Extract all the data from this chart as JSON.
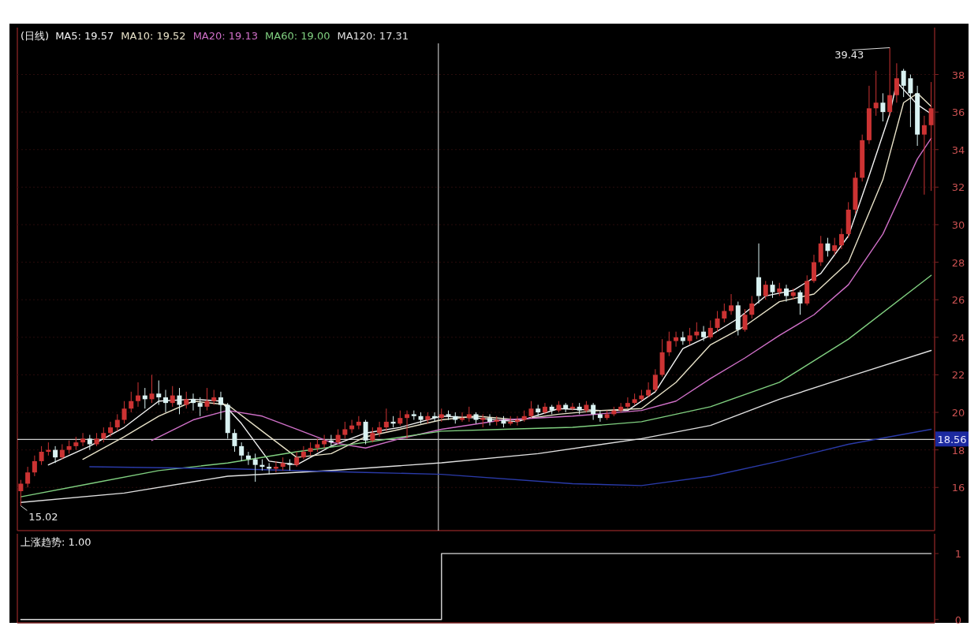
{
  "chart_data": [
    {
      "type": "candlestick",
      "title": "(日线)",
      "categories": [
        null,
        null,
        null,
        null,
        null,
        null,
        null,
        null,
        null,
        null,
        null,
        null,
        null,
        null,
        null,
        null,
        null,
        null,
        null,
        null,
        null,
        null,
        null,
        null,
        null,
        null,
        null,
        null,
        null,
        null,
        null,
        null,
        null,
        null,
        null,
        null,
        null,
        null,
        null,
        null,
        null,
        null,
        null,
        null,
        null,
        null,
        null,
        null,
        null,
        null,
        null,
        null,
        null,
        null,
        null,
        null,
        null,
        null,
        null,
        null,
        null,
        null,
        null,
        null,
        null,
        null,
        null,
        null,
        null,
        null,
        null,
        null,
        null,
        null,
        null,
        null,
        null,
        null,
        null,
        null,
        null,
        null,
        null,
        null,
        null,
        null,
        null,
        null,
        null,
        null,
        null,
        null,
        null,
        null,
        null,
        null,
        null,
        null,
        null,
        null,
        null,
        null,
        null,
        null,
        null,
        null,
        null,
        null,
        null,
        null,
        null,
        null,
        null,
        null,
        null,
        null,
        null,
        null,
        null,
        null,
        null,
        null,
        null,
        null,
        null,
        null,
        null,
        null,
        null,
        null,
        null,
        null,
        null
      ],
      "ohlc": [
        [
          15.8,
          16.4,
          15.02,
          16.2
        ],
        [
          16.2,
          17.1,
          16.0,
          16.8
        ],
        [
          16.8,
          17.7,
          16.6,
          17.4
        ],
        [
          17.4,
          18.2,
          17.2,
          17.9
        ],
        [
          17.9,
          18.4,
          17.7,
          18.0
        ],
        [
          18.0,
          18.2,
          17.3,
          17.6
        ],
        [
          17.6,
          18.3,
          17.5,
          18.0
        ],
        [
          18.0,
          18.5,
          17.8,
          18.2
        ],
        [
          18.2,
          18.7,
          18.0,
          18.4
        ],
        [
          18.4,
          18.9,
          18.2,
          18.6
        ],
        [
          18.6,
          18.8,
          18.0,
          18.3
        ],
        [
          18.3,
          18.9,
          18.2,
          18.6
        ],
        [
          18.6,
          19.2,
          18.4,
          18.9
        ],
        [
          18.9,
          19.5,
          18.7,
          19.2
        ],
        [
          19.2,
          19.9,
          19.0,
          19.6
        ],
        [
          19.6,
          20.6,
          19.4,
          20.2
        ],
        [
          20.2,
          21.1,
          20.0,
          20.6
        ],
        [
          20.6,
          21.6,
          20.3,
          20.9
        ],
        [
          20.9,
          21.3,
          20.2,
          20.7
        ],
        [
          20.7,
          22.0,
          20.5,
          21.0
        ],
        [
          21.0,
          21.7,
          20.4,
          20.8
        ],
        [
          20.8,
          21.2,
          20.0,
          20.5
        ],
        [
          20.5,
          21.4,
          20.3,
          20.9
        ],
        [
          20.9,
          21.3,
          19.9,
          20.4
        ],
        [
          20.4,
          21.1,
          20.2,
          20.7
        ],
        [
          20.7,
          21.0,
          20.1,
          20.5
        ],
        [
          20.5,
          20.8,
          19.8,
          20.3
        ],
        [
          20.3,
          21.3,
          20.1,
          20.6
        ],
        [
          20.6,
          21.2,
          20.4,
          20.8
        ],
        [
          20.8,
          21.1,
          19.6,
          20.4
        ],
        [
          20.4,
          20.5,
          18.6,
          18.9
        ],
        [
          18.9,
          19.1,
          17.9,
          18.2
        ],
        [
          18.2,
          18.4,
          17.4,
          17.7
        ],
        [
          17.7,
          17.9,
          17.2,
          17.5
        ],
        [
          17.5,
          17.8,
          16.3,
          17.2
        ],
        [
          17.2,
          17.5,
          16.9,
          17.1
        ],
        [
          17.1,
          17.3,
          16.7,
          17.0
        ],
        [
          17.0,
          17.4,
          16.8,
          17.1
        ],
        [
          17.1,
          17.6,
          16.9,
          17.3
        ],
        [
          17.3,
          17.5,
          16.9,
          17.2
        ],
        [
          17.2,
          17.9,
          17.1,
          17.6
        ],
        [
          17.6,
          18.2,
          17.5,
          17.9
        ],
        [
          17.9,
          18.4,
          17.7,
          18.1
        ],
        [
          18.1,
          18.6,
          17.9,
          18.3
        ],
        [
          18.3,
          18.8,
          18.1,
          18.5
        ],
        [
          18.5,
          18.8,
          18.2,
          18.4
        ],
        [
          18.4,
          19.1,
          18.3,
          18.8
        ],
        [
          18.8,
          19.5,
          18.6,
          19.1
        ],
        [
          19.1,
          19.6,
          18.9,
          19.3
        ],
        [
          19.3,
          19.8,
          19.1,
          19.5
        ],
        [
          19.5,
          19.6,
          18.3,
          18.5
        ],
        [
          18.5,
          19.2,
          18.4,
          18.9
        ],
        [
          18.9,
          19.5,
          18.7,
          19.2
        ],
        [
          19.2,
          20.2,
          19.0,
          19.5
        ],
        [
          19.5,
          19.8,
          19.2,
          19.4
        ],
        [
          19.4,
          20.1,
          19.3,
          19.7
        ],
        [
          19.7,
          20.1,
          18.6,
          19.9
        ],
        [
          19.9,
          20.1,
          19.6,
          19.8
        ],
        [
          19.8,
          20.0,
          19.4,
          19.6
        ],
        [
          19.6,
          20.0,
          19.4,
          19.8
        ],
        [
          19.8,
          20.0,
          19.5,
          19.7
        ],
        [
          19.7,
          20.2,
          19.5,
          19.9
        ],
        [
          19.9,
          20.1,
          19.6,
          19.8
        ],
        [
          19.8,
          20.0,
          19.4,
          19.6
        ],
        [
          19.6,
          20.0,
          19.5,
          19.7
        ],
        [
          19.7,
          20.3,
          19.5,
          19.9
        ],
        [
          19.9,
          20.0,
          19.4,
          19.6
        ],
        [
          19.6,
          19.9,
          19.2,
          19.7
        ],
        [
          19.7,
          19.9,
          19.3,
          19.5
        ],
        [
          19.5,
          19.8,
          19.3,
          19.6
        ],
        [
          19.6,
          19.8,
          19.2,
          19.4
        ],
        [
          19.4,
          19.8,
          19.3,
          19.5
        ],
        [
          19.5,
          19.8,
          19.3,
          19.6
        ],
        [
          19.6,
          20.1,
          19.5,
          19.8
        ],
        [
          19.8,
          20.6,
          19.7,
          20.2
        ],
        [
          20.2,
          20.4,
          19.8,
          20.0
        ],
        [
          20.0,
          20.5,
          19.9,
          20.3
        ],
        [
          20.3,
          20.4,
          19.9,
          20.1
        ],
        [
          20.1,
          20.6,
          20.0,
          20.4
        ],
        [
          20.4,
          20.5,
          20.0,
          20.2
        ],
        [
          20.2,
          20.5,
          20.1,
          20.3
        ],
        [
          20.3,
          20.5,
          19.9,
          20.1
        ],
        [
          20.1,
          20.6,
          20.0,
          20.4
        ],
        [
          20.4,
          20.5,
          19.6,
          19.9
        ],
        [
          19.9,
          20.1,
          19.5,
          19.7
        ],
        [
          19.7,
          20.1,
          19.6,
          19.9
        ],
        [
          19.9,
          20.3,
          19.8,
          20.1
        ],
        [
          20.1,
          20.5,
          20.0,
          20.3
        ],
        [
          20.3,
          20.8,
          20.2,
          20.5
        ],
        [
          20.5,
          21.0,
          20.4,
          20.7
        ],
        [
          20.7,
          21.2,
          20.6,
          20.9
        ],
        [
          20.9,
          21.6,
          20.8,
          21.2
        ],
        [
          21.2,
          22.3,
          21.1,
          22.0
        ],
        [
          22.0,
          23.9,
          21.9,
          23.2
        ],
        [
          23.2,
          24.3,
          23.0,
          23.8
        ],
        [
          23.8,
          24.3,
          23.5,
          24.0
        ],
        [
          24.0,
          24.3,
          23.6,
          23.8
        ],
        [
          23.8,
          24.5,
          23.6,
          24.1
        ],
        [
          24.1,
          24.8,
          23.9,
          24.3
        ],
        [
          24.3,
          24.6,
          23.8,
          24.0
        ],
        [
          24.0,
          24.9,
          23.9,
          24.5
        ],
        [
          24.5,
          25.4,
          24.3,
          25.0
        ],
        [
          25.0,
          25.8,
          24.8,
          25.4
        ],
        [
          25.4,
          26.3,
          25.2,
          25.7
        ],
        [
          25.7,
          25.9,
          24.1,
          24.4
        ],
        [
          24.4,
          25.5,
          24.3,
          25.2
        ],
        [
          25.2,
          26.2,
          25.0,
          25.8
        ],
        [
          27.2,
          29.0,
          25.8,
          26.2
        ],
        [
          26.2,
          27.0,
          26.0,
          26.8
        ],
        [
          26.8,
          27.0,
          26.1,
          26.4
        ],
        [
          26.4,
          26.9,
          26.2,
          26.6
        ],
        [
          26.6,
          26.8,
          25.9,
          26.2
        ],
        [
          26.2,
          26.6,
          26.0,
          26.4
        ],
        [
          26.4,
          26.5,
          25.2,
          25.8
        ],
        [
          25.8,
          27.3,
          25.7,
          27.0
        ],
        [
          27.0,
          28.4,
          26.9,
          28.0
        ],
        [
          28.0,
          29.4,
          27.8,
          29.0
        ],
        [
          29.0,
          29.3,
          28.3,
          28.6
        ],
        [
          28.6,
          29.3,
          28.4,
          28.9
        ],
        [
          28.9,
          29.8,
          28.7,
          29.5
        ],
        [
          29.5,
          31.2,
          29.3,
          30.8
        ],
        [
          30.8,
          32.8,
          30.6,
          32.5
        ],
        [
          32.5,
          34.8,
          32.3,
          34.5
        ],
        [
          34.5,
          37.4,
          34.3,
          36.2
        ],
        [
          36.2,
          38.2,
          35.8,
          36.5
        ],
        [
          36.5,
          37.0,
          35.5,
          36.0
        ],
        [
          36.0,
          39.43,
          35.8,
          36.9
        ],
        [
          36.9,
          38.6,
          36.5,
          37.8
        ],
        [
          38.2,
          38.3,
          36.8,
          37.4
        ],
        [
          37.8,
          38.0,
          35.2,
          37.0
        ],
        [
          37.0,
          37.4,
          34.2,
          34.8
        ],
        [
          34.8,
          35.8,
          31.6,
          35.3
        ],
        [
          35.3,
          37.6,
          31.8,
          36.2
        ]
      ],
      "colors": [
        "#cc3333",
        "#cc3333",
        "#cc3333",
        "#cc3333",
        "#cc3333",
        "#d9f2f2",
        "#cc3333",
        "#cc3333",
        "#cc3333",
        "#cc3333",
        "#d9f2f2",
        "#cc3333",
        "#cc3333",
        "#cc3333",
        "#cc3333",
        "#cc3333",
        "#cc3333",
        "#cc3333",
        "#d9f2f2",
        "#cc3333",
        "#d9f2f2",
        "#d9f2f2",
        "#cc3333",
        "#d9f2f2",
        "#cc3333",
        "#d9f2f2",
        "#d9f2f2",
        "#cc3333",
        "#cc3333",
        "#d9f2f2",
        "#d9f2f2",
        "#d9f2f2",
        "#d9f2f2",
        "#d9f2f2",
        "#d9f2f2",
        "#d9f2f2",
        "#d9f2f2",
        "#cc3333",
        "#cc3333",
        "#d9f2f2",
        "#cc3333",
        "#cc3333",
        "#cc3333",
        "#cc3333",
        "#cc3333",
        "#d9f2f2",
        "#cc3333",
        "#cc3333",
        "#cc3333",
        "#cc3333",
        "#d9f2f2",
        "#cc3333",
        "#cc3333",
        "#cc3333",
        "#d9f2f2",
        "#cc3333",
        "#cc3333",
        "#d9f2f2",
        "#d9f2f2",
        "#cc3333",
        "#d9f2f2",
        "#cc3333",
        "#d9f2f2",
        "#d9f2f2",
        "#cc3333",
        "#cc3333",
        "#d9f2f2",
        "#cc3333",
        "#d9f2f2",
        "#cc3333",
        "#d9f2f2",
        "#cc3333",
        "#cc3333",
        "#cc3333",
        "#cc3333",
        "#d9f2f2",
        "#cc3333",
        "#d9f2f2",
        "#cc3333",
        "#d9f2f2",
        "#cc3333",
        "#d9f2f2",
        "#cc3333",
        "#d9f2f2",
        "#d9f2f2",
        "#cc3333",
        "#cc3333",
        "#cc3333",
        "#cc3333",
        "#cc3333",
        "#cc3333",
        "#cc3333",
        "#cc3333",
        "#cc3333",
        "#cc3333",
        "#cc3333",
        "#d9f2f2",
        "#cc3333",
        "#cc3333",
        "#d9f2f2",
        "#cc3333",
        "#cc3333",
        "#cc3333",
        "#cc3333",
        "#d9f2f2",
        "#cc3333",
        "#cc3333",
        "#d9f2f2",
        "#cc3333",
        "#d9f2f2",
        "#cc3333",
        "#d9f2f2",
        "#cc3333",
        "#d9f2f2",
        "#cc3333",
        "#cc3333",
        "#cc3333",
        "#d9f2f2",
        "#cc3333",
        "#cc3333",
        "#cc3333",
        "#cc3333",
        "#cc3333",
        "#cc3333",
        "#cc3333",
        "#d9f2f2",
        "#cc3333",
        "#cc3333",
        "#d9f2f2",
        "#d9f2f2",
        "#d9f2f2",
        "#cc3333",
        "#cc3333"
      ],
      "series": [
        {
          "type": "line",
          "name": "MA5: 19.57",
          "color": "#f4f4f4",
          "values": [
            null,
            null,
            null,
            null,
            17.2,
            null,
            null,
            null,
            null,
            null,
            18.2,
            null,
            null,
            null,
            null,
            19.2,
            null,
            null,
            null,
            null,
            20.6,
            null,
            null,
            null,
            null,
            20.7,
            null,
            null,
            null,
            20.6,
            null,
            null,
            19.4,
            null,
            null,
            null,
            17.4,
            null,
            null,
            null,
            17.2,
            null,
            null,
            null,
            null,
            18.2,
            null,
            null,
            null,
            null,
            18.9,
            null,
            null,
            null,
            null,
            19.2,
            null,
            null,
            null,
            null,
            null,
            19.8,
            null,
            null,
            null,
            null,
            19.7,
            null,
            null,
            null,
            null,
            null,
            19.5,
            null,
            null,
            null,
            null,
            null,
            20.2,
            null,
            null,
            null,
            null,
            null,
            20.1,
            null,
            null,
            null,
            20.1,
            null,
            null,
            null,
            21.1,
            null,
            null,
            null,
            23.4,
            null,
            null,
            null,
            24.1,
            null,
            null,
            null,
            25.0,
            null,
            null,
            null,
            26.2,
            null,
            null,
            null,
            26.5,
            null,
            null,
            null,
            27.4,
            null,
            null,
            null,
            29.4,
            null,
            null,
            32.6,
            null,
            null,
            35.9,
            37.6,
            null,
            null,
            36.4,
            null,
            35.9
          ]
        },
        {
          "type": "line",
          "name": "MA10: 19.52",
          "color": "#e8e2c8",
          "values": [
            null,
            null,
            null,
            null,
            null,
            null,
            null,
            null,
            null,
            17.5,
            null,
            null,
            null,
            null,
            null,
            18.7,
            null,
            null,
            null,
            null,
            19.8,
            null,
            null,
            null,
            null,
            20.6,
            null,
            null,
            null,
            null,
            20.4,
            null,
            null,
            null,
            null,
            19.0,
            null,
            null,
            null,
            null,
            17.6,
            null,
            null,
            null,
            null,
            17.8,
            null,
            null,
            null,
            null,
            18.7,
            null,
            null,
            null,
            null,
            19.1,
            null,
            null,
            null,
            null,
            null,
            19.6,
            null,
            null,
            null,
            null,
            19.8,
            null,
            null,
            null,
            null,
            null,
            19.6,
            null,
            null,
            null,
            null,
            null,
            19.9,
            null,
            null,
            null,
            null,
            null,
            20.1,
            null,
            null,
            null,
            null,
            null,
            20.2,
            null,
            null,
            null,
            null,
            21.6,
            null,
            null,
            null,
            null,
            23.6,
            null,
            null,
            null,
            null,
            24.6,
            null,
            null,
            null,
            null,
            25.9,
            null,
            null,
            null,
            null,
            26.3,
            null,
            null,
            null,
            null,
            28.0,
            null,
            null,
            null,
            null,
            32.4,
            null,
            null,
            36.5,
            null,
            37.0,
            null,
            36.3
          ]
        },
        {
          "type": "line",
          "name": "MA20: 19.13",
          "color": "#d070c8",
          "values": [
            null,
            null,
            null,
            null,
            null,
            null,
            null,
            null,
            null,
            null,
            null,
            null,
            null,
            null,
            null,
            null,
            null,
            null,
            null,
            18.5,
            null,
            null,
            null,
            null,
            null,
            19.6,
            null,
            null,
            null,
            null,
            20.1,
            null,
            null,
            null,
            null,
            19.8,
            null,
            null,
            null,
            null,
            19.1,
            null,
            null,
            null,
            null,
            18.4,
            null,
            null,
            null,
            null,
            18.1,
            null,
            null,
            null,
            null,
            18.6,
            null,
            null,
            null,
            null,
            null,
            19.1,
            null,
            null,
            null,
            null,
            null,
            null,
            null,
            null,
            19.6,
            null,
            null,
            null,
            null,
            null,
            null,
            null,
            null,
            null,
            19.8,
            null,
            null,
            null,
            null,
            null,
            null,
            null,
            null,
            null,
            20.1,
            null,
            null,
            null,
            null,
            20.6,
            null,
            null,
            null,
            null,
            21.8,
            null,
            null,
            null,
            null,
            22.9,
            null,
            null,
            null,
            null,
            24.1,
            null,
            null,
            null,
            null,
            25.2,
            null,
            null,
            null,
            null,
            26.8,
            null,
            null,
            null,
            null,
            29.5,
            null,
            null,
            null,
            null,
            33.5,
            null,
            34.6
          ]
        },
        {
          "type": "line",
          "name": "MA60: 19.00",
          "color": "#80d080",
          "values": [
            15.5,
            null,
            null,
            null,
            null,
            null,
            null,
            null,
            null,
            null,
            16.2,
            null,
            null,
            null,
            null,
            null,
            null,
            null,
            null,
            null,
            16.9,
            null,
            null,
            null,
            null,
            null,
            null,
            null,
            null,
            null,
            17.3,
            null,
            null,
            null,
            null,
            null,
            null,
            null,
            null,
            null,
            17.9,
            null,
            null,
            null,
            null,
            null,
            null,
            null,
            null,
            null,
            18.4,
            null,
            null,
            null,
            null,
            null,
            null,
            null,
            null,
            null,
            null,
            19.0,
            null,
            null,
            null,
            null,
            null,
            null,
            null,
            null,
            19.1,
            null,
            null,
            null,
            null,
            null,
            null,
            null,
            null,
            null,
            19.2,
            null,
            null,
            null,
            null,
            null,
            null,
            null,
            null,
            null,
            19.5,
            null,
            null,
            null,
            null,
            null,
            null,
            null,
            null,
            null,
            20.3,
            null,
            null,
            null,
            null,
            null,
            null,
            null,
            null,
            null,
            21.6,
            null,
            null,
            null,
            null,
            null,
            null,
            null,
            null,
            null,
            23.9,
            null,
            null,
            null,
            null,
            null,
            null,
            null,
            null,
            null,
            null,
            null,
            27.3
          ]
        },
        {
          "type": "line",
          "name": "MA120: 17.31",
          "color": "#e0e0e0",
          "values": [
            15.2,
            null,
            null,
            null,
            null,
            null,
            null,
            null,
            null,
            null,
            null,
            null,
            null,
            null,
            null,
            15.7,
            null,
            null,
            null,
            null,
            null,
            null,
            null,
            null,
            null,
            null,
            null,
            null,
            null,
            null,
            16.6,
            null,
            null,
            null,
            null,
            null,
            null,
            null,
            null,
            null,
            null,
            null,
            null,
            null,
            null,
            16.9,
            null,
            null,
            null,
            null,
            null,
            null,
            null,
            null,
            null,
            null,
            null,
            null,
            null,
            null,
            null,
            17.31,
            null,
            null,
            null,
            null,
            null,
            null,
            null,
            null,
            null,
            null,
            null,
            null,
            null,
            17.8,
            null,
            null,
            null,
            null,
            null,
            null,
            null,
            null,
            null,
            null,
            null,
            null,
            null,
            null,
            18.6,
            null,
            null,
            null,
            null,
            null,
            null,
            null,
            null,
            null,
            19.3,
            null,
            null,
            null,
            null,
            null,
            null,
            null,
            null,
            null,
            20.7,
            null,
            null,
            null,
            null,
            null,
            null,
            null,
            null,
            null,
            21.9,
            null,
            null,
            null,
            null,
            null,
            null,
            null,
            null,
            null,
            null,
            null,
            23.3
          ]
        },
        {
          "type": "line",
          "color": "#2a3aa8",
          "values": [
            null,
            null,
            null,
            null,
            null,
            null,
            null,
            null,
            null,
            null,
            17.1,
            null,
            null,
            null,
            null,
            null,
            null,
            null,
            null,
            null,
            null,
            null,
            null,
            null,
            null,
            null,
            null,
            null,
            null,
            null,
            17.0,
            null,
            null,
            null,
            null,
            null,
            null,
            null,
            null,
            null,
            null,
            null,
            null,
            null,
            null,
            null,
            null,
            null,
            null,
            null,
            16.8,
            null,
            null,
            null,
            null,
            null,
            null,
            null,
            null,
            null,
            null,
            16.7,
            null,
            null,
            null,
            null,
            null,
            null,
            null,
            null,
            null,
            null,
            null,
            null,
            null,
            null,
            null,
            null,
            null,
            null,
            16.2,
            null,
            null,
            null,
            null,
            null,
            null,
            null,
            null,
            null,
            16.1,
            null,
            null,
            null,
            null,
            null,
            null,
            null,
            null,
            null,
            16.6,
            null,
            null,
            null,
            null,
            null,
            null,
            null,
            null,
            null,
            17.4,
            null,
            null,
            null,
            null,
            null,
            null,
            null,
            null,
            null,
            18.3,
            null,
            null,
            null,
            null,
            null,
            null,
            null,
            null,
            null,
            null,
            null,
            19.1
          ]
        }
      ],
      "ylim": [
        13.7,
        40.5
      ],
      "yticks": [
        16,
        18,
        20,
        22,
        24,
        26,
        28,
        30,
        32,
        34,
        36,
        38
      ],
      "grid": "y",
      "legend": "top left",
      "ref_lines": [
        {
          "axis": "y",
          "value": 18.56,
          "label": "18.56",
          "color": "#cfcfcf"
        }
      ],
      "annotations": [
        "39.43",
        "15.02"
      ]
    },
    {
      "type": "step",
      "title": "上涨趋势: 1.00",
      "categories": [
        null,
        null,
        null,
        null,
        null,
        null,
        null,
        null,
        null,
        null,
        null,
        null,
        null,
        null,
        null,
        null,
        null,
        null,
        null,
        null,
        null,
        null,
        null,
        null,
        null,
        null,
        null,
        null,
        null,
        null,
        null,
        null,
        null,
        null,
        null,
        null,
        null,
        null,
        null,
        null,
        null,
        null,
        null,
        null,
        null,
        null,
        null,
        null,
        null,
        null,
        null,
        null,
        null,
        null,
        null,
        null,
        null,
        null,
        null,
        null,
        null,
        null,
        null,
        null,
        null,
        null,
        null,
        null,
        null,
        null,
        null,
        null,
        null,
        null,
        null,
        null,
        null,
        null,
        null,
        null,
        null,
        null,
        null,
        null,
        null,
        null,
        null,
        null,
        null,
        null,
        null,
        null,
        null,
        null,
        null,
        null,
        null,
        null,
        null,
        null,
        null,
        null,
        null,
        null,
        null,
        null,
        null,
        null,
        null,
        null,
        null,
        null,
        null,
        null,
        null,
        null,
        null,
        null,
        null,
        null,
        null,
        null,
        null,
        null,
        null,
        null,
        null,
        null,
        null,
        null,
        null,
        null,
        null
      ],
      "series": [
        {
          "color": "#d8d8d8",
          "values": [
            0,
            0,
            0,
            0,
            0,
            0,
            0,
            0,
            0,
            0,
            0,
            0,
            0,
            0,
            0,
            0,
            0,
            0,
            0,
            0,
            0,
            0,
            0,
            0,
            0,
            0,
            0,
            0,
            0,
            0,
            0,
            0,
            0,
            0,
            0,
            0,
            0,
            0,
            0,
            0,
            0,
            0,
            0,
            0,
            0,
            0,
            0,
            0,
            0,
            0,
            0,
            0,
            0,
            0,
            0,
            0,
            0,
            0,
            0,
            0,
            0,
            1,
            1,
            1,
            1,
            1,
            1,
            1,
            1,
            1,
            1,
            1,
            1,
            1,
            1,
            1,
            1,
            1,
            1,
            1,
            1,
            1,
            1,
            1,
            1,
            1,
            1,
            1,
            1,
            1,
            1,
            1,
            1,
            1,
            1,
            1,
            1,
            1,
            1,
            1,
            1,
            1,
            1,
            1,
            1,
            1,
            1,
            1,
            1,
            1,
            1,
            1,
            1,
            1,
            1,
            1,
            1,
            1,
            1,
            1,
            1,
            1,
            1,
            1,
            1,
            1,
            1,
            1,
            1,
            1,
            1,
            1,
            1
          ]
        }
      ],
      "ylim": [
        -0.05,
        1.3
      ],
      "yticks": [
        0,
        1
      ]
    }
  ]
}
